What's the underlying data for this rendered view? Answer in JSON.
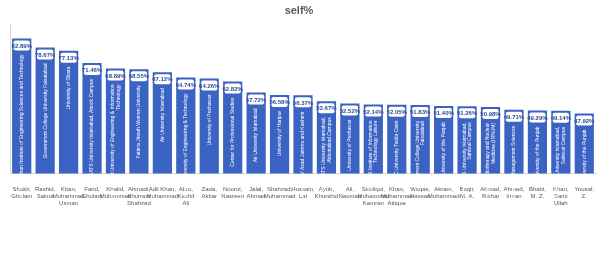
{
  "chart_data": {
    "type": "bar",
    "title": "self%",
    "categories": [
      "Shakir, Ghulam",
      "Rashid, Saima",
      "Khan, Muhammad Usman",
      "Farid, Ghulam",
      "Khalid, Muhammad",
      "Ahmadi, Khurram Shahzad",
      "Adil Khan, Muhammad",
      "Abro, Kashif Ali",
      "Zada, Akbar",
      "Noorul, Nasreen",
      "Jalal, Ahmad",
      "Shahzad, Muhammad",
      "Hussain, Lal",
      "Ayub, Khurshid",
      "Ali, Nauman",
      "Siddiqui, Muhammad Kamran",
      "Khan, Muhammad Attique",
      "Waqas, Hassan",
      "Akram, Muhammad",
      "Baqir, M. A.",
      "Ahmad, Iftikhar",
      "Ahmed, Imran",
      "Bhatti, M. Z.",
      "Khan, Sami Ullah",
      "Yousaf, Z."
    ],
    "values": [
      82.89,
      78.67,
      77.13,
      71.46,
      68.89,
      68.55,
      67.12,
      64.74,
      64.26,
      62.82,
      57.72,
      56.58,
      56.37,
      53.67,
      52.52,
      52.14,
      52.05,
      51.83,
      51.4,
      51.26,
      50.98,
      49.71,
      49.29,
      49.14,
      47.92
    ],
    "value_labels": [
      "82.89%",
      "78.67%",
      "77.13%",
      "71.46%",
      "68.89%",
      "68.55%",
      "67.12%",
      "64.74%",
      "64.26%",
      "62.82%",
      "57.72%",
      "56.58%",
      "56.37%",
      "53.67%",
      "52.52%",
      "52.14%",
      "52.05%",
      "51.83%",
      "51.40%",
      "51.26%",
      "50.98%",
      "49.71%",
      "49.29%",
      "49.14%",
      "47.92%"
    ],
    "annotations": [
      "Ghulam Ishaq Khan Institute of Engineering Sciences and Technology",
      "Government College University Faisalabad",
      "University of Okara",
      "COMSATS University Islamabad, Attock Campus",
      "Khwaja Fareed University of Engineering & Information Technology",
      "Fatima Jinnah Women University",
      "Air University Islamabad",
      "Mehran University of Engineering & Technology",
      "University of Peshawar",
      "Center for Professional Studies",
      "Air University Islamabad",
      "University of Haripur",
      "University of Azad Jammu and Kashmir",
      "COMSATS University Islamabad, Abbottabad Campus",
      "University of Peshawar",
      "COMSATS Institute of Information Technology Lahore",
      "HITEC University Taxila Cantt",
      "Government College University Faisalabad",
      "University of the Punjab",
      "COMSATS University Islamabad, Sahiwal Campus",
      "Institute of Radiotherapy and Nuclear Medicine (IRNUM)",
      "Institute of Management Sciences",
      "University of the Punjab",
      "COMSATS University Islamabad, Sahiwal Campus",
      "University of the Punjab"
    ],
    "color": "#3b63c4",
    "ylim": [
      20,
      90
    ],
    "grid": false,
    "data_labels": true,
    "tick_labels": "x"
  }
}
